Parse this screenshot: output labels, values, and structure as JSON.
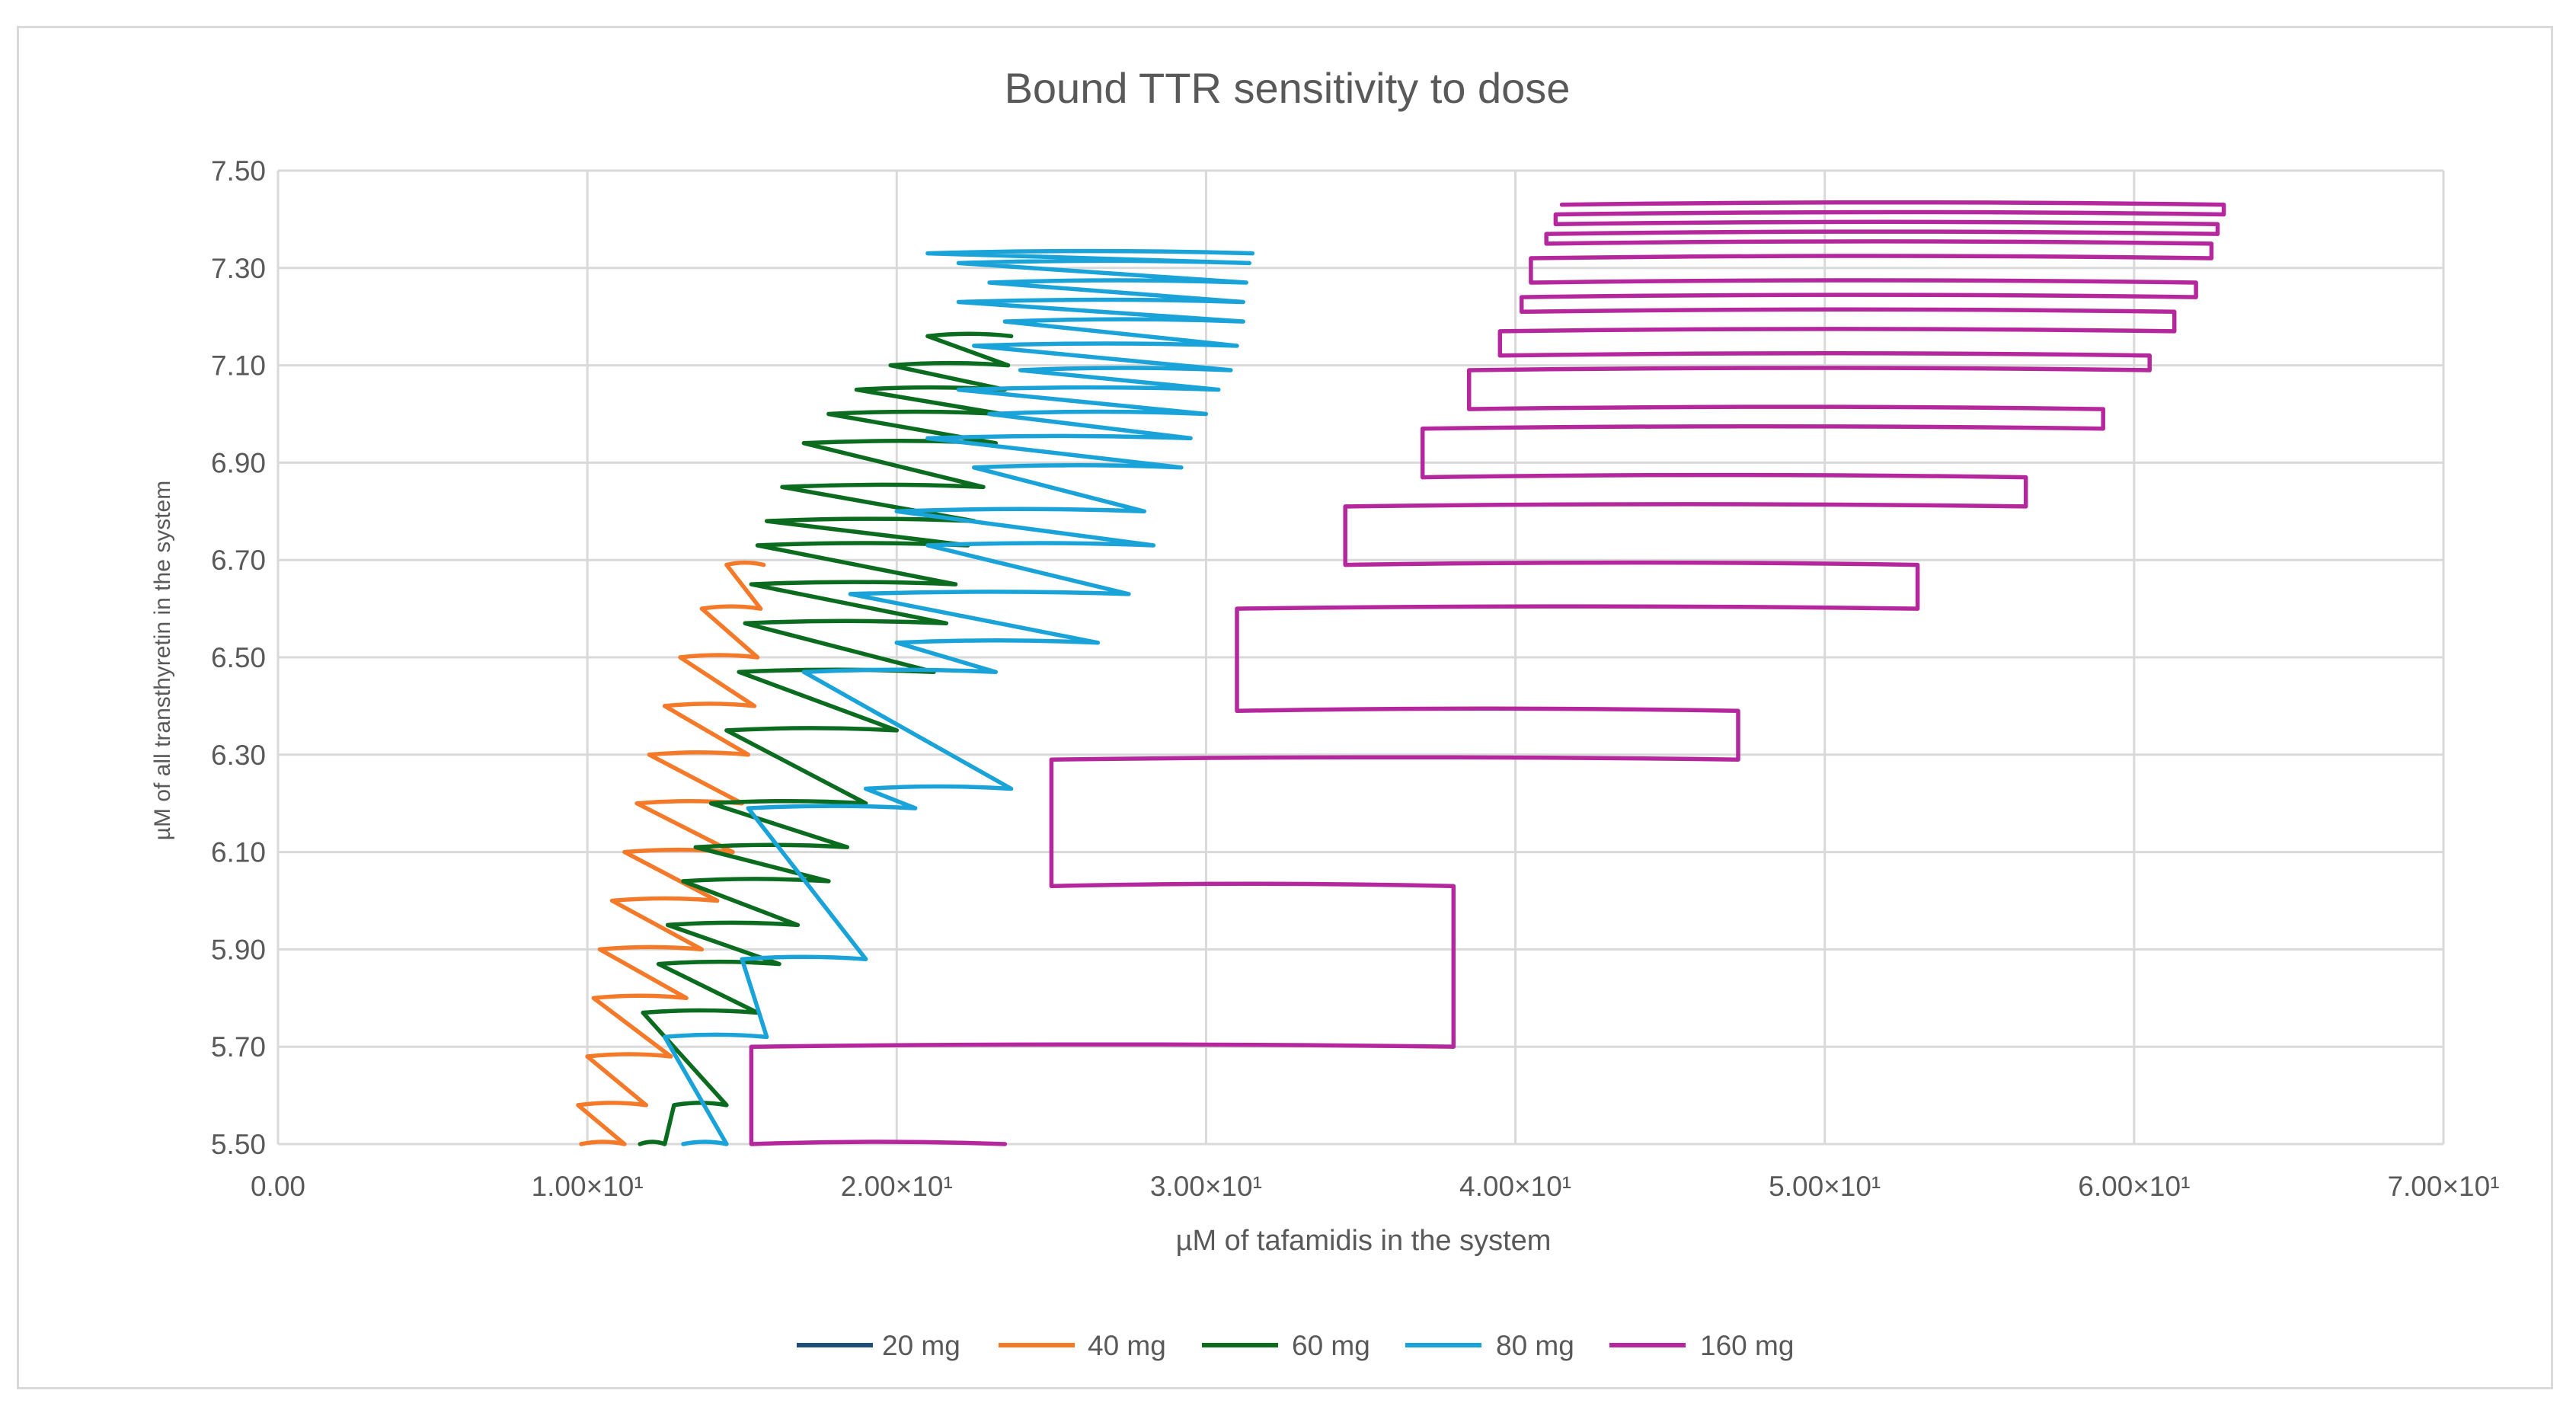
{
  "chart_data": {
    "type": "line",
    "title": "Bound TTR sensitivity to dose",
    "xlabel": "µM of tafamidis in the system",
    "ylabel": "µM of all transthyretin in the system",
    "xlim": [
      0,
      70
    ],
    "ylim": [
      5.5,
      7.5
    ],
    "x_ticks": [
      0,
      10,
      20,
      30,
      40,
      50,
      60,
      70
    ],
    "x_tick_labels": [
      "0.00",
      "1.00×10¹",
      "2.00×10¹",
      "3.00×10¹",
      "4.00×10¹",
      "5.00×10¹",
      "6.00×10¹",
      "7.00×10¹"
    ],
    "y_ticks": [
      5.5,
      5.7,
      5.9,
      6.1,
      6.3,
      6.5,
      6.7,
      6.9,
      7.1,
      7.3,
      7.5
    ],
    "y_tick_labels": [
      "5.50",
      "5.70",
      "5.90",
      "6.10",
      "6.30",
      "6.50",
      "6.70",
      "6.90",
      "7.10",
      "7.30",
      "7.50"
    ],
    "grid": true,
    "legend_position": "bottom",
    "series": [
      {
        "name": "20 mg",
        "color": "#1f4e79",
        "x_end": [],
        "x_start": [],
        "y": []
      },
      {
        "name": "40 mg",
        "color": "#f47a2a",
        "y": [
          5.5,
          5.58,
          5.68,
          5.8,
          5.9,
          6.0,
          6.1,
          6.2,
          6.3,
          6.4,
          6.5,
          6.6,
          6.69
        ],
        "x_start": [
          9.8,
          9.7,
          10.0,
          10.2,
          10.4,
          10.8,
          11.2,
          11.6,
          12.0,
          12.5,
          13.0,
          13.7,
          14.5
        ],
        "x_end": [
          11.2,
          11.9,
          12.7,
          13.2,
          13.7,
          14.2,
          14.7,
          15.0,
          15.2,
          15.4,
          15.5,
          15.6,
          15.7
        ]
      },
      {
        "name": "60 mg",
        "color": "#0b6b1e",
        "y": [
          5.5,
          5.58,
          5.77,
          5.87,
          5.95,
          6.04,
          6.11,
          6.2,
          6.35,
          6.47,
          6.57,
          6.65,
          6.73,
          6.78,
          6.85,
          6.94,
          7.0,
          7.05,
          7.1,
          7.16
        ],
        "x_start": [
          11.7,
          12.8,
          11.8,
          12.3,
          12.6,
          13.1,
          13.5,
          14.0,
          14.5,
          14.9,
          15.1,
          15.3,
          15.5,
          15.8,
          16.3,
          17.0,
          17.8,
          18.7,
          19.8,
          21.0
        ],
        "x_end": [
          12.5,
          14.5,
          15.5,
          16.2,
          16.8,
          17.8,
          18.4,
          19.0,
          20.0,
          21.2,
          21.6,
          21.9,
          22.3,
          22.5,
          22.8,
          23.2,
          23.4,
          23.5,
          23.6,
          23.7
        ]
      },
      {
        "name": "80 mg",
        "color": "#1aa3d9",
        "y": [
          5.5,
          5.72,
          5.88,
          6.19,
          6.23,
          6.47,
          6.53,
          6.63,
          6.73,
          6.8,
          6.89,
          6.95,
          7.0,
          7.05,
          7.09,
          7.14,
          7.19,
          7.23,
          7.27,
          7.31,
          7.33
        ],
        "x_start": [
          13.1,
          12.5,
          15.0,
          15.2,
          19.0,
          17.0,
          20.0,
          18.5,
          21.0,
          20.0,
          22.5,
          21.0,
          23.0,
          22.0,
          24.0,
          22.5,
          23.5,
          22.0,
          23.0,
          22.0,
          21.0
        ],
        "x_end": [
          14.5,
          15.8,
          19.0,
          20.6,
          23.7,
          23.2,
          26.5,
          27.5,
          28.3,
          28.0,
          29.2,
          29.5,
          30.0,
          30.4,
          30.8,
          31.0,
          31.2,
          31.2,
          31.3,
          31.4,
          31.5
        ]
      },
      {
        "name": "160 mg",
        "color": "#b5289d",
        "y": [
          5.5,
          5.7,
          6.03,
          6.29,
          6.39,
          6.6,
          6.69,
          6.81,
          6.87,
          6.97,
          7.01,
          7.09,
          7.12,
          7.17,
          7.21,
          7.24,
          7.27,
          7.32,
          7.35,
          7.37,
          7.39,
          7.41,
          7.43
        ],
        "x_start": [
          23.5,
          15.3,
          38.0,
          25.0,
          47.2,
          31.0,
          53.0,
          34.5,
          56.5,
          37.0,
          59.0,
          38.5,
          60.5,
          39.5,
          61.3,
          40.2,
          62.0,
          40.5,
          62.5,
          41.0,
          62.7,
          41.3,
          62.9
        ],
        "x_end": [
          15.3,
          38.0,
          25.0,
          47.2,
          31.0,
          53.0,
          34.5,
          56.5,
          37.0,
          59.0,
          38.5,
          60.5,
          39.5,
          61.3,
          40.2,
          62.0,
          40.5,
          62.5,
          41.0,
          62.7,
          41.3,
          62.9,
          41.5
        ]
      }
    ]
  }
}
